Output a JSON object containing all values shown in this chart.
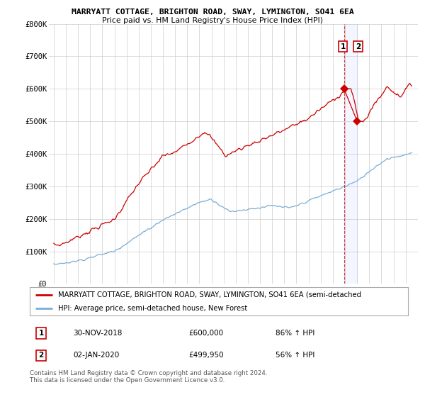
{
  "title": "MARRYATT COTTAGE, BRIGHTON ROAD, SWAY, LYMINGTON, SO41 6EA",
  "subtitle": "Price paid vs. HM Land Registry's House Price Index (HPI)",
  "red_label": "MARRYATT COTTAGE, BRIGHTON ROAD, SWAY, LYMINGTON, SO41 6EA (semi-detached",
  "blue_label": "HPI: Average price, semi-detached house, New Forest",
  "footer": "Contains HM Land Registry data © Crown copyright and database right 2024.\nThis data is licensed under the Open Government Licence v3.0.",
  "annotation1_date": "30-NOV-2018",
  "annotation1_price": "£600,000",
  "annotation1_hpi": "86% ↑ HPI",
  "annotation2_date": "02-JAN-2020",
  "annotation2_price": "£499,950",
  "annotation2_hpi": "56% ↑ HPI",
  "ylim": [
    0,
    800000
  ],
  "yticks": [
    0,
    100000,
    200000,
    300000,
    400000,
    500000,
    600000,
    700000,
    800000
  ],
  "red_color": "#cc0000",
  "blue_color": "#7aaed6",
  "vline1_x": 2018.92,
  "vline2_x": 2020.01,
  "marker1_x": 2018.92,
  "marker1_y": 600000,
  "marker2_x": 2020.01,
  "marker2_y": 499950,
  "background_color": "#ffffff",
  "grid_color": "#cccccc",
  "xlim_left": 1994.6,
  "xlim_right": 2025.0
}
